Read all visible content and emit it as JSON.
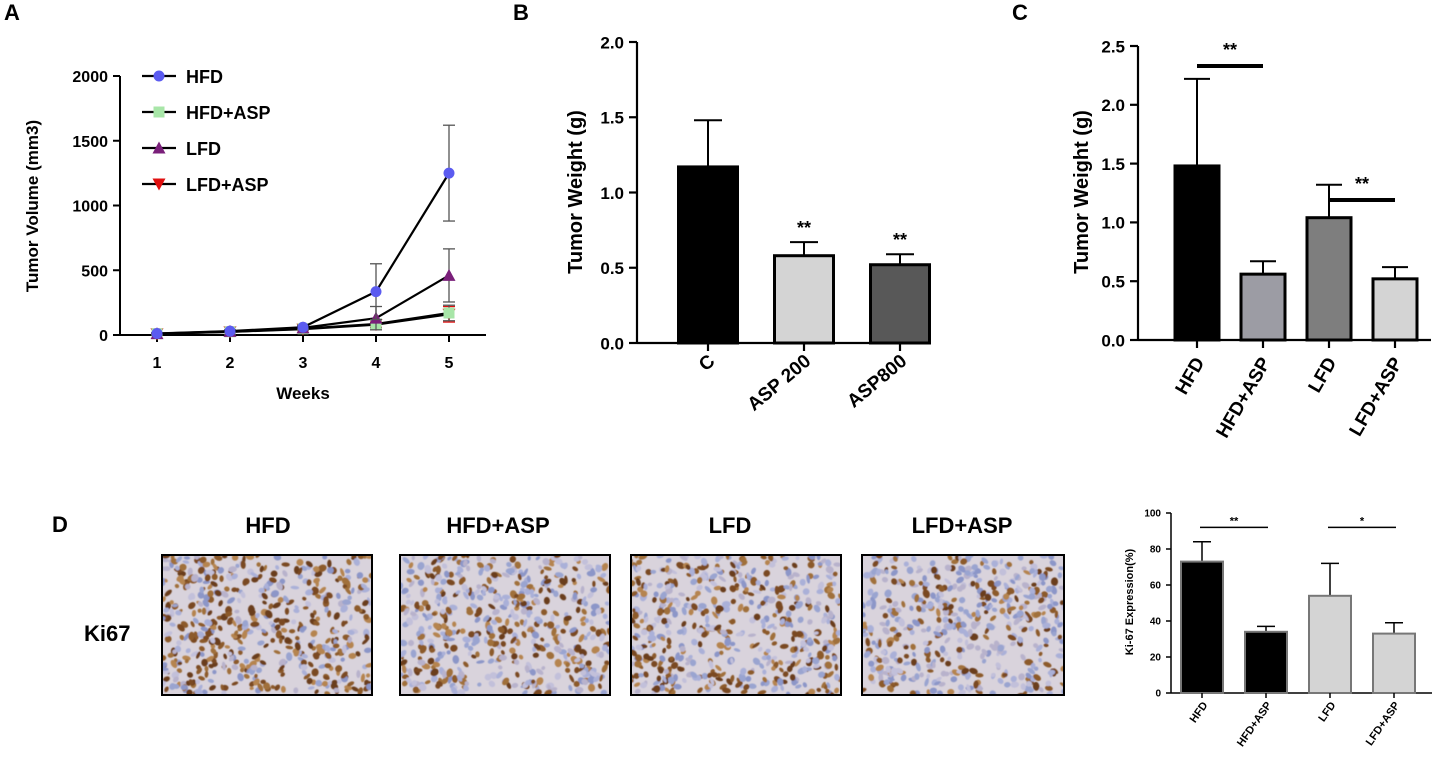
{
  "panels": {
    "A": {
      "label": "A"
    },
    "B": {
      "label": "B"
    },
    "C": {
      "label": "C"
    },
    "D": {
      "label": "D",
      "row_label": "Ki67",
      "images": [
        {
          "title": "HFD",
          "density": 0.62
        },
        {
          "title": "HFD+ASP",
          "density": 0.42
        },
        {
          "title": "LFD",
          "density": 0.5
        },
        {
          "title": "LFD+ASP",
          "density": 0.34
        }
      ]
    }
  },
  "colors": {
    "hfd": "#5b5bf0",
    "hfd_asp": "#a8e6a8",
    "lfd": "#7a1f7a",
    "lfd_asp": "#e01010",
    "black": "#000000",
    "light_gray": "#d4d4d4",
    "dark_gray": "#585858",
    "mid_gray": "#9c9ca4",
    "gray": "#7e7e7e"
  },
  "chart_data": [
    {
      "type": "line",
      "panel": "A",
      "xlabel": "Weeks",
      "ylabel": "Tumor Volume (mm3)",
      "x": [
        1,
        2,
        3,
        4,
        5
      ],
      "xticks": [
        "1",
        "2",
        "3",
        "4",
        "5"
      ],
      "ylim": [
        0,
        2000
      ],
      "yticks": [
        0,
        500,
        1000,
        1500,
        2000
      ],
      "legend_position": "top-left",
      "series": [
        {
          "name": "HFD",
          "marker": "circle",
          "color_key": "hfd",
          "values": [
            12,
            30,
            60,
            335,
            1250
          ],
          "err": [
            5,
            10,
            15,
            215,
            370
          ]
        },
        {
          "name": "HFD+ASP",
          "marker": "square",
          "color_key": "hfd_asp",
          "values": [
            10,
            25,
            48,
            85,
            170
          ],
          "err": [
            4,
            8,
            10,
            30,
            60
          ]
        },
        {
          "name": "LFD",
          "marker": "triangle-up",
          "color_key": "lfd",
          "values": [
            11,
            28,
            55,
            130,
            460
          ],
          "err": [
            4,
            9,
            12,
            90,
            205
          ]
        },
        {
          "name": "LFD+ASP",
          "marker": "triangle-down",
          "color_key": "lfd_asp",
          "values": [
            9,
            24,
            45,
            80,
            160
          ],
          "err": [
            3,
            7,
            9,
            20,
            60
          ]
        }
      ]
    },
    {
      "type": "bar",
      "panel": "B",
      "ylabel": "Tumor Weight (g)",
      "categories": [
        "C",
        "ASP 200",
        "ASP800"
      ],
      "values": [
        1.17,
        0.58,
        0.52
      ],
      "err": [
        0.31,
        0.09,
        0.07
      ],
      "fill_keys": [
        "black",
        "light_gray",
        "dark_gray"
      ],
      "significance": [
        "",
        "**",
        "**"
      ],
      "ylim": [
        0,
        2.0
      ],
      "yticks": [
        "0.0",
        "0.5",
        "1.0",
        "1.5",
        "2.0"
      ]
    },
    {
      "type": "bar",
      "panel": "C",
      "ylabel": "Tumor Weight (g)",
      "categories": [
        "HFD",
        "HFD+ASP",
        "LFD",
        "LFD+ASP"
      ],
      "values": [
        1.48,
        0.56,
        1.04,
        0.52
      ],
      "err": [
        0.74,
        0.11,
        0.28,
        0.1
      ],
      "fill_keys": [
        "black",
        "mid_gray",
        "gray",
        "light_gray"
      ],
      "ylim": [
        0,
        2.5
      ],
      "yticks": [
        "0.0",
        "0.5",
        "1.0",
        "1.5",
        "2.0",
        "2.5"
      ],
      "comparisons": [
        {
          "from": 0,
          "to": 1,
          "label": "**",
          "y": 2.33
        },
        {
          "from": 2,
          "to": 3,
          "label": "**",
          "y": 1.19
        }
      ]
    },
    {
      "type": "bar",
      "panel": "D",
      "ylabel": "Ki-67 Expression(%)",
      "categories": [
        "HFD",
        "HFD+ASP",
        "LFD",
        "LFD+ASP"
      ],
      "values": [
        73,
        34,
        54,
        33
      ],
      "err": [
        11,
        3,
        18,
        6
      ],
      "fill_keys": [
        "black",
        "black",
        "light_gray",
        "light_gray"
      ],
      "ylim": [
        0,
        100
      ],
      "yticks": [
        "0",
        "20",
        "40",
        "60",
        "80",
        "100"
      ],
      "comparisons": [
        {
          "from": 0,
          "to": 1,
          "label": "**",
          "y": 92
        },
        {
          "from": 2,
          "to": 3,
          "label": "*",
          "y": 92
        }
      ]
    }
  ]
}
